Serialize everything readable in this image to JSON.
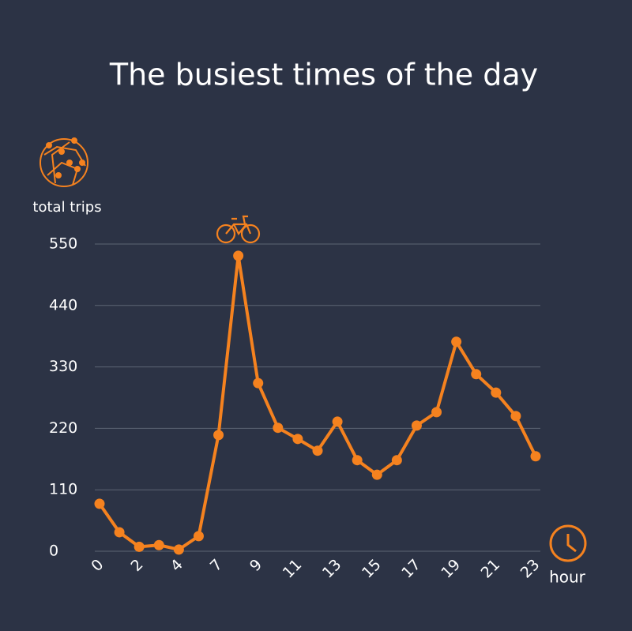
{
  "chart_data": {
    "type": "line",
    "title": "The busiest times of the day",
    "y_label": "total trips",
    "x_label": "hour",
    "categories": [
      "0",
      null,
      "2",
      null,
      "4",
      null,
      "7",
      null,
      "9",
      null,
      "11",
      null,
      "13",
      null,
      "15",
      null,
      "17",
      null,
      "19",
      null,
      "21",
      null,
      "23"
    ],
    "values": [
      85,
      34,
      8,
      11,
      3,
      27,
      208,
      529,
      301,
      221,
      201,
      180,
      232,
      163,
      137,
      163,
      225,
      249,
      375,
      317,
      284,
      242,
      170
    ],
    "color": "#f5821f",
    "ylim": [
      0,
      550
    ],
    "yticks": [
      0,
      110,
      220,
      330,
      440,
      550
    ],
    "grid": true
  }
}
